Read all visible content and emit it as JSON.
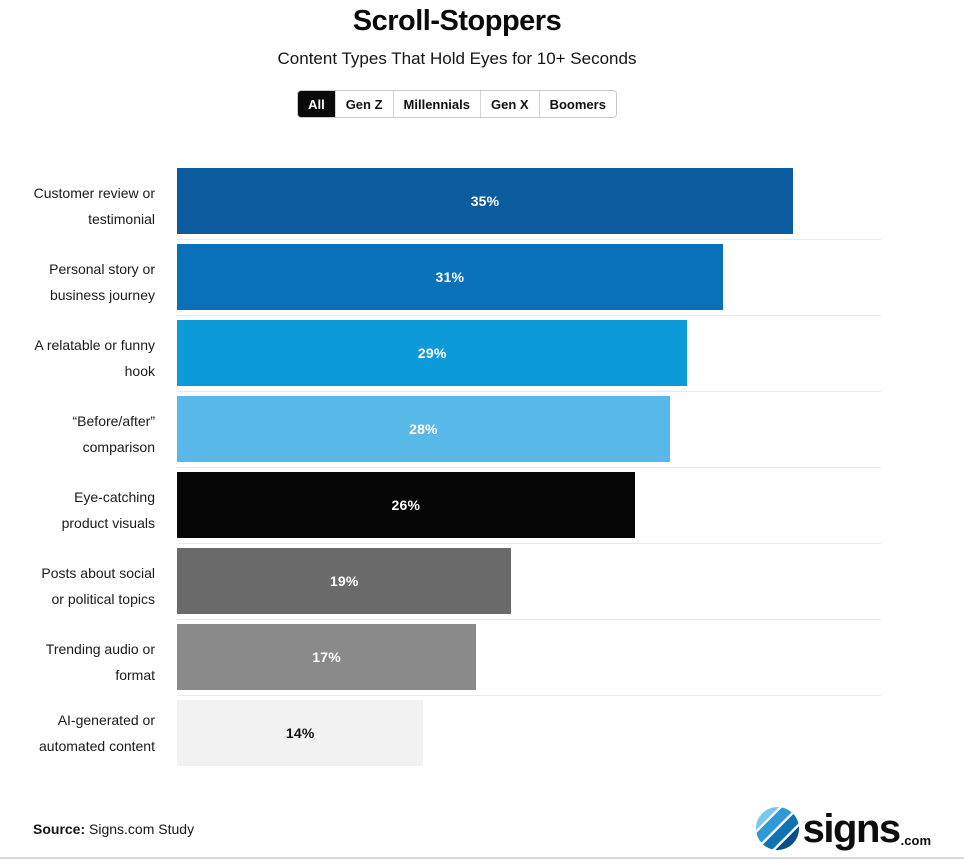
{
  "header": {
    "title": "Scroll-Stoppers",
    "subtitle": "Content Types That Hold Eyes for 10+ Seconds"
  },
  "tabs": [
    {
      "label": "All",
      "active": true
    },
    {
      "label": "Gen Z",
      "active": false
    },
    {
      "label": "Millennials",
      "active": false
    },
    {
      "label": "Gen X",
      "active": false
    },
    {
      "label": "Boomers",
      "active": false
    }
  ],
  "chart_data": {
    "type": "bar",
    "orientation": "horizontal",
    "title": "Scroll-Stoppers",
    "subtitle": "Content Types That Hold Eyes for 10+ Seconds",
    "categories": [
      "Customer review or testimonial",
      "Personal story or business journey",
      "A relatable or funny hook",
      "“Before/after” comparison",
      "Eye-catching product visuals",
      "Posts about social or political topics",
      "Trending audio or format",
      "AI-generated or automated content"
    ],
    "values": [
      35,
      31,
      29,
      28,
      26,
      19,
      17,
      14
    ],
    "value_labels": [
      "35%",
      "31%",
      "29%",
      "28%",
      "26%",
      "19%",
      "17%",
      "14%"
    ],
    "value_suffix": "%",
    "xlim": [
      0,
      40
    ],
    "grid": false,
    "legend": false,
    "bar_colors": [
      "#0a5c9e",
      "#0971ba",
      "#0c9bd8",
      "#58b8e8",
      "#050505",
      "#6a6a6a",
      "#8a8a8a",
      "#f2f2f2"
    ],
    "value_text_colors": [
      "#ffffff",
      "#ffffff",
      "#ffffff",
      "#ffffff",
      "#ffffff",
      "#ffffff",
      "#ffffff",
      "#111111"
    ]
  },
  "footer": {
    "source_label": "Source:",
    "source_text": " Signs.com Study",
    "logo_word": "signs",
    "logo_tld": ".com"
  },
  "colors": {
    "accent_dark_blue": "#0a5c9e",
    "accent_light_blue": "#58b8e8",
    "separator": "#e9e9e9",
    "active_tab_bg": "#0a0a0a"
  }
}
